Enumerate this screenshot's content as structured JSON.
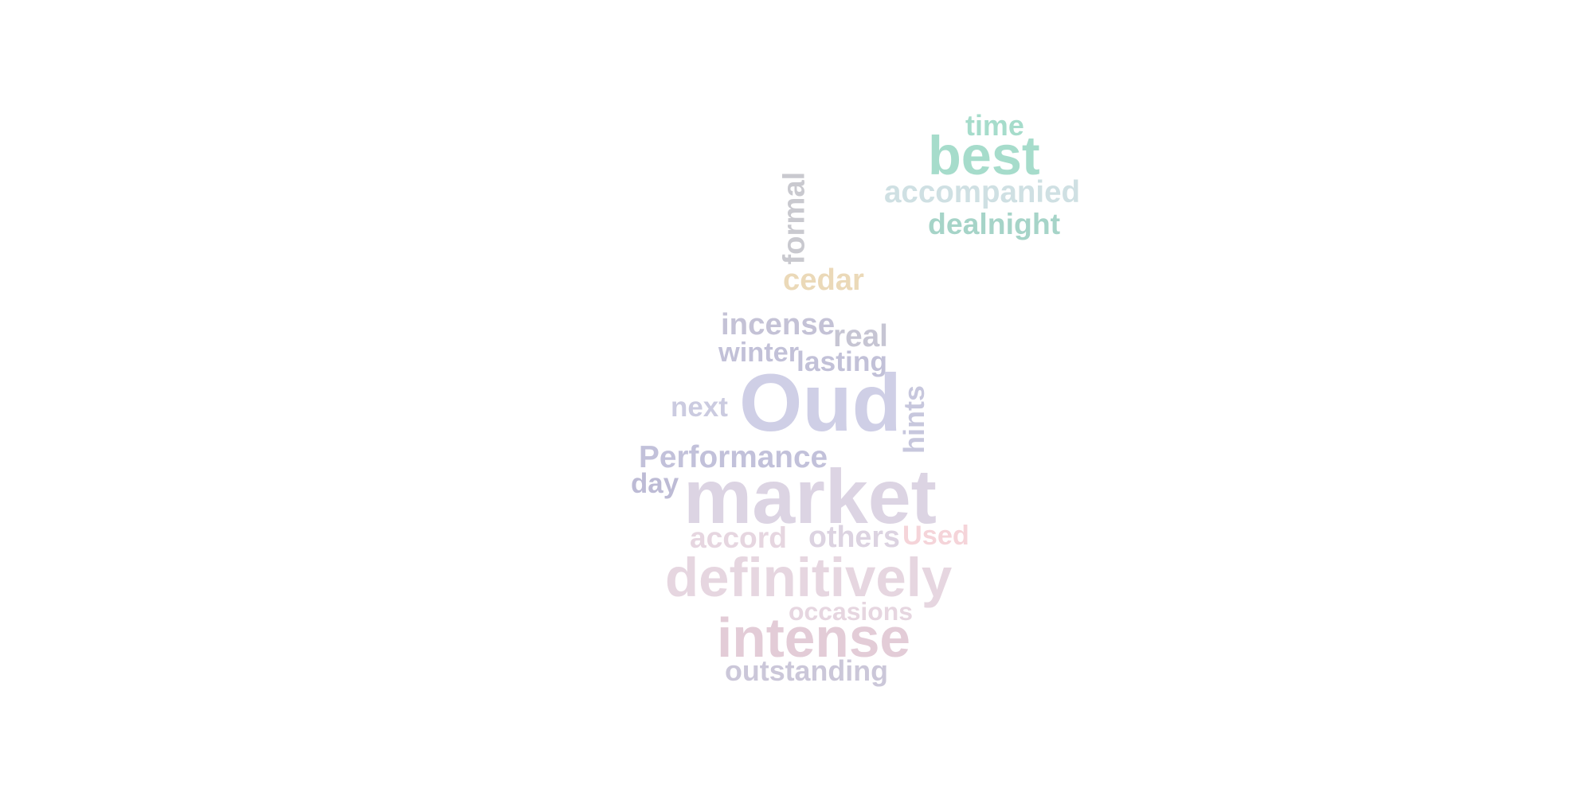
{
  "words": [
    {
      "id": "time",
      "text": "time",
      "color": "#a6dccb"
    },
    {
      "id": "best",
      "text": "best",
      "color": "#a6dccb"
    },
    {
      "id": "accompanied",
      "text": "accompanied",
      "color": "#cfe0e3"
    },
    {
      "id": "dealnight",
      "text": "dealnight",
      "color": "#a6d4c8"
    },
    {
      "id": "formal",
      "text": "formal",
      "color": "#c9c9cf"
    },
    {
      "id": "cedar",
      "text": "cedar",
      "color": "#ebd9b8"
    },
    {
      "id": "incense",
      "text": "incense",
      "color": "#c4c2d6"
    },
    {
      "id": "real",
      "text": "real",
      "color": "#c6c5d3"
    },
    {
      "id": "winter",
      "text": "winter",
      "color": "#c2c1d8"
    },
    {
      "id": "lasting",
      "text": "lasting",
      "color": "#c2c1d8"
    },
    {
      "id": "oud",
      "text": "Oud",
      "color": "#cfcfe6"
    },
    {
      "id": "hints",
      "text": "hints",
      "color": "#c7c7dd"
    },
    {
      "id": "next",
      "text": "next",
      "color": "#cbcbe0"
    },
    {
      "id": "performance",
      "text": "Performance",
      "color": "#c2c1da"
    },
    {
      "id": "day",
      "text": "day",
      "color": "#bdbbd5"
    },
    {
      "id": "market",
      "text": "market",
      "color": "#dcd4e3"
    },
    {
      "id": "accord",
      "text": "accord",
      "color": "#e6d6e0"
    },
    {
      "id": "others",
      "text": "others",
      "color": "#dcd3e1"
    },
    {
      "id": "used",
      "text": "Used",
      "color": "#f5d4d9"
    },
    {
      "id": "definitively",
      "text": "definitively",
      "color": "#e6d6e0"
    },
    {
      "id": "occasions",
      "text": "occasions",
      "color": "#e6d6e0"
    },
    {
      "id": "intense",
      "text": "intense",
      "color": "#e3ccd7"
    },
    {
      "id": "outstanding",
      "text": "outstanding",
      "color": "#cbc7d9"
    }
  ]
}
